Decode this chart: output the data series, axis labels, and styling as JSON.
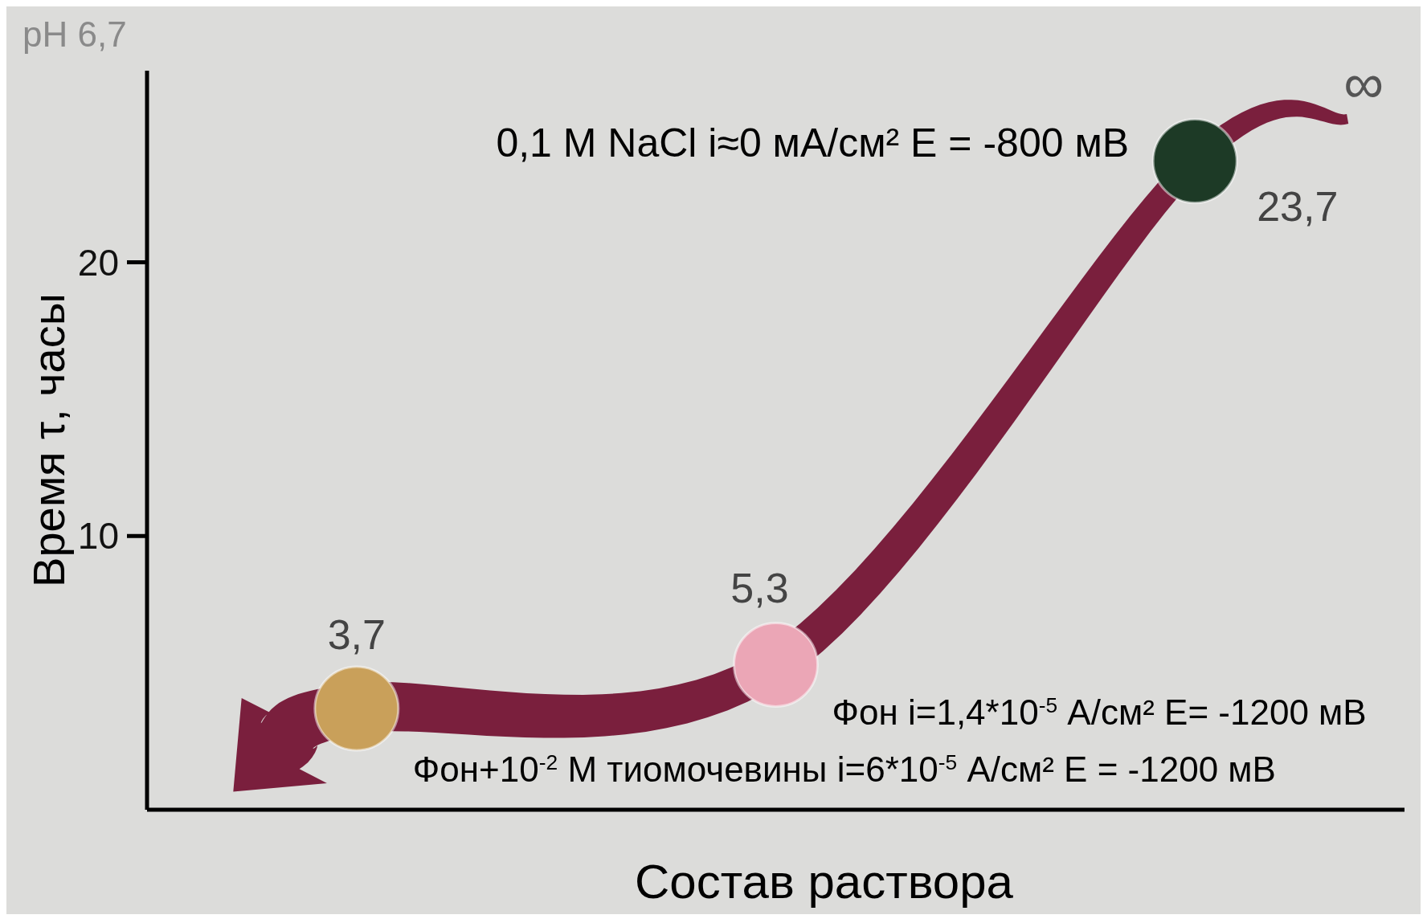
{
  "chart_data": {
    "type": "scatter",
    "xlabel": "Состав раствора",
    "ylabel": "Время τ, часы",
    "categories": [
      null,
      null,
      null
    ],
    "values": [
      3.7,
      5.3,
      23.7
    ],
    "colors": [
      "#c9a05a",
      "#eba6b6",
      "#1d3a26"
    ],
    "value_labels": [
      "3,7",
      "5,3",
      "23,7"
    ],
    "marker": "circle",
    "ylim": [
      0,
      27
    ],
    "yticks": [
      10,
      20
    ],
    "annotations": [
      "pH 6,7",
      "∞",
      "0,1 M NaCl i≈0 мА/см² E = -800 мВ",
      "Фон i=1,4*10$^{-5}$ А/см² E= -1200 мВ",
      "Фон+10$^{-2}$ М тиомочевины i=6*10$^{-5}$ А/см² E = -1200 мВ"
    ]
  }
}
